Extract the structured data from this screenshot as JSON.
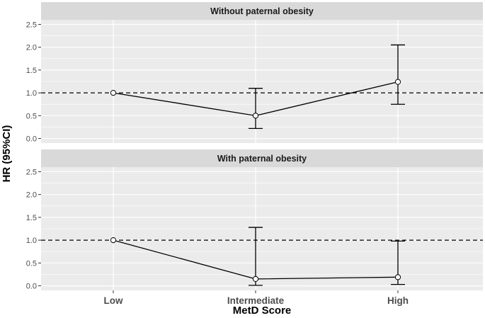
{
  "chart_data": {
    "type": "line",
    "xlabel": "MetD Score",
    "ylabel": "HR (95%CI)",
    "categories": [
      "Low",
      "Intermediate",
      "High"
    ],
    "ylim": [
      -0.1,
      2.6
    ],
    "yticks": [
      0.0,
      0.5,
      1.0,
      1.5,
      2.0,
      2.5
    ],
    "reference_line": 1.0,
    "grid": true,
    "colors": {
      "panel_bg": "#ebebeb",
      "strip_bg": "#d9d9d9",
      "grid": "#ffffff",
      "line": "#000000",
      "point_fill": "#ffffff"
    },
    "panels": [
      {
        "title": "Without paternal obesity",
        "points": [
          {
            "x": "Low",
            "hr": 1.0,
            "lower": null,
            "upper": null
          },
          {
            "x": "Intermediate",
            "hr": 0.5,
            "lower": 0.22,
            "upper": 1.1
          },
          {
            "x": "High",
            "hr": 1.24,
            "lower": 0.75,
            "upper": 2.05
          }
        ]
      },
      {
        "title": "With paternal obesity",
        "points": [
          {
            "x": "Low",
            "hr": 1.0,
            "lower": null,
            "upper": null
          },
          {
            "x": "Intermediate",
            "hr": 0.15,
            "lower": 0.01,
            "upper": 1.28
          },
          {
            "x": "High",
            "hr": 0.19,
            "lower": 0.03,
            "upper": 0.98
          }
        ]
      }
    ]
  }
}
